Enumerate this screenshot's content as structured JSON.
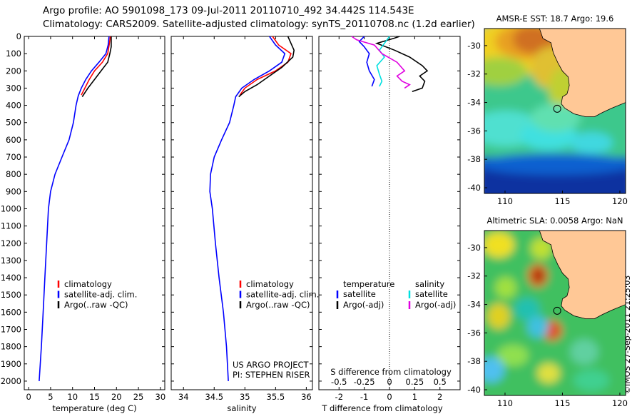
{
  "header": {
    "line1": "Argo profile: AO 5901098_173 09-Jul-2011 20110710_492 34.442S 114.543E",
    "line2": "Climatology: CARS2009. Satellite-adjusted climatology: synTS_20110708.nc (1.2d earlier)"
  },
  "colors": {
    "climatology": "#ff0000",
    "satellite": "#0000ff",
    "argo": "#000000",
    "satellite_salinity": "#00e0e0",
    "argo_salinity_adj": "#e000e0",
    "land": "#ffc896"
  },
  "chart_data": [
    {
      "id": "temperature",
      "type": "line",
      "xlabel": "temperature (deg C)",
      "ylabel": "",
      "xlim": [
        -1,
        31
      ],
      "ylim": [
        2050,
        0
      ],
      "y_reversed": true,
      "xticks": [
        0,
        5,
        10,
        15,
        20,
        25,
        30
      ],
      "yticks": [
        0,
        100,
        200,
        300,
        400,
        500,
        600,
        700,
        800,
        900,
        1000,
        1100,
        1200,
        1300,
        1400,
        1500,
        1600,
        1700,
        1800,
        1900,
        2000
      ],
      "series": [
        {
          "name": "climatology",
          "color": "#ff0000",
          "points": [
            [
              18.6,
              0
            ],
            [
              18.4,
              40
            ],
            [
              18.0,
              100
            ],
            [
              16.8,
              150
            ],
            [
              15.0,
              200
            ],
            [
              13.8,
              250
            ],
            [
              12.8,
              300
            ],
            [
              12.0,
              340
            ]
          ]
        },
        {
          "name": "satellite-adj. clim.",
          "color": "#0000ff",
          "points": [
            [
              18.3,
              0
            ],
            [
              18.1,
              50
            ],
            [
              17.6,
              100
            ],
            [
              16.0,
              150
            ],
            [
              14.3,
              200
            ],
            [
              13.0,
              250
            ],
            [
              12.0,
              300
            ],
            [
              11.3,
              345
            ],
            [
              10.8,
              400
            ],
            [
              10.2,
              500
            ],
            [
              9.2,
              600
            ],
            [
              7.6,
              700
            ],
            [
              6.0,
              800
            ],
            [
              5.0,
              900
            ],
            [
              4.5,
              1000
            ],
            [
              4.1,
              1200
            ],
            [
              3.7,
              1400
            ],
            [
              3.3,
              1600
            ],
            [
              2.9,
              1800
            ],
            [
              2.4,
              2000
            ]
          ]
        },
        {
          "name": "Argo(..raw -QC)",
          "color": "#000000",
          "points": [
            [
              18.8,
              0
            ],
            [
              18.8,
              60
            ],
            [
              18.5,
              100
            ],
            [
              18.0,
              150
            ],
            [
              16.5,
              200
            ],
            [
              15.0,
              250
            ],
            [
              13.5,
              300
            ],
            [
              12.2,
              350
            ]
          ]
        }
      ],
      "legend": {
        "position": "bottom-right",
        "entries": [
          "climatology",
          "satellite-adj. clim.",
          "Argo(..raw -QC)"
        ]
      }
    },
    {
      "id": "salinity",
      "type": "line",
      "xlabel": "salinity",
      "ylabel": "",
      "xlim": [
        33.8,
        36.1
      ],
      "ylim": [
        2050,
        0
      ],
      "y_reversed": true,
      "xticks": [
        34,
        34.5,
        35,
        35.5,
        36
      ],
      "series": [
        {
          "name": "climatology",
          "color": "#ff0000",
          "points": [
            [
              35.45,
              0
            ],
            [
              35.55,
              50
            ],
            [
              35.75,
              100
            ],
            [
              35.7,
              150
            ],
            [
              35.5,
              200
            ],
            [
              35.2,
              250
            ],
            [
              35.0,
              300
            ],
            [
              34.92,
              340
            ]
          ]
        },
        {
          "name": "satellite-adj. clim.",
          "color": "#0000ff",
          "points": [
            [
              35.4,
              0
            ],
            [
              35.5,
              50
            ],
            [
              35.65,
              100
            ],
            [
              35.6,
              150
            ],
            [
              35.4,
              200
            ],
            [
              35.15,
              250
            ],
            [
              34.95,
              300
            ],
            [
              34.85,
              350
            ],
            [
              34.82,
              400
            ],
            [
              34.75,
              500
            ],
            [
              34.62,
              600
            ],
            [
              34.5,
              700
            ],
            [
              34.44,
              800
            ],
            [
              34.43,
              900
            ],
            [
              34.47,
              1000
            ],
            [
              34.52,
              1200
            ],
            [
              34.58,
              1400
            ],
            [
              34.65,
              1600
            ],
            [
              34.7,
              1800
            ],
            [
              34.73,
              2000
            ]
          ]
        },
        {
          "name": "Argo(..raw -QC)",
          "color": "#000000",
          "points": [
            [
              35.7,
              0
            ],
            [
              35.75,
              40
            ],
            [
              35.8,
              80
            ],
            [
              35.78,
              120
            ],
            [
              35.6,
              180
            ],
            [
              35.4,
              230
            ],
            [
              35.2,
              280
            ],
            [
              35.0,
              320
            ],
            [
              34.9,
              350
            ]
          ]
        }
      ],
      "legend": {
        "position": "bottom-right",
        "entries": [
          "climatology",
          "satellite-adj. clim.",
          "Argo(..raw -QC)"
        ]
      },
      "annotations": [
        "US ARGO PROJECT",
        "PI: STEPHEN RISER"
      ]
    },
    {
      "id": "differences",
      "type": "line",
      "xlabel": "T difference from climatology",
      "x2label": "S difference from climatology",
      "xlim": [
        -2.8,
        2.8
      ],
      "ylim": [
        2050,
        0
      ],
      "y_reversed": true,
      "xticks": [
        -2,
        -1,
        0,
        1,
        2
      ],
      "x2ticks": [
        -0.5,
        -0.25,
        0,
        0.25,
        0.5
      ],
      "x2tick_labels": [
        "-0.5",
        "-0.25",
        "0",
        "0.25",
        "0.5"
      ],
      "series": [
        {
          "name": "temperature satellite",
          "color": "#0000ff",
          "points": [
            [
              -1.0,
              0
            ],
            [
              -1.2,
              30
            ],
            [
              -1.0,
              60
            ],
            [
              -0.8,
              100
            ],
            [
              -0.9,
              150
            ],
            [
              -0.8,
              200
            ],
            [
              -0.6,
              250
            ],
            [
              -0.7,
              290
            ]
          ]
        },
        {
          "name": "temperature Argo(-adj)",
          "color": "#000000",
          "points": [
            [
              0.4,
              0
            ],
            [
              0.2,
              10
            ],
            [
              -0.5,
              40
            ],
            [
              0.2,
              80
            ],
            [
              0.8,
              120
            ],
            [
              1.3,
              170
            ],
            [
              1.5,
              200
            ],
            [
              1.2,
              230
            ],
            [
              1.4,
              260
            ],
            [
              1.3,
              300
            ],
            [
              0.9,
              320
            ]
          ]
        },
        {
          "name": "salinity satellite",
          "color": "#00e0e0",
          "points": [
            [
              0.0,
              0
            ],
            [
              -0.2,
              40
            ],
            [
              -0.4,
              80
            ],
            [
              -0.2,
              120
            ],
            [
              -0.5,
              170
            ],
            [
              -0.4,
              220
            ],
            [
              -0.3,
              260
            ],
            [
              -0.4,
              290
            ]
          ]
        },
        {
          "name": "salinity Argo(-adj)",
          "color": "#e000e0",
          "points": [
            [
              -1.5,
              0
            ],
            [
              -1.3,
              20
            ],
            [
              -0.6,
              50
            ],
            [
              -0.3,
              100
            ],
            [
              0.3,
              150
            ],
            [
              0.6,
              200
            ],
            [
              0.3,
              230
            ],
            [
              0.5,
              260
            ],
            [
              0.8,
              280
            ],
            [
              0.6,
              300
            ]
          ]
        }
      ],
      "legend": {
        "temperature_title": "temperature",
        "salinity_title": "salinity",
        "entries": [
          [
            "satellite",
            "satellite"
          ],
          [
            "Argo(-adj)",
            "Argo(-adj)"
          ]
        ]
      }
    },
    {
      "id": "sst_map",
      "type": "heatmap",
      "title": "AMSR-E SST: 18.7 Argo: 19.6",
      "xlim": [
        108.2,
        120.5
      ],
      "ylim": [
        -40.4,
        -28.8
      ],
      "xticks": [
        110,
        115,
        120
      ],
      "yticks": [
        -30,
        -32,
        -34,
        -36,
        -38,
        -40
      ],
      "xtick_labels": [
        "110",
        "115",
        "120"
      ],
      "ytick_labels": [
        "-30",
        "-32",
        "-34",
        "-36",
        "-38",
        "-40"
      ],
      "marker": {
        "lon": 114.543,
        "lat": -34.442
      }
    },
    {
      "id": "sla_map",
      "type": "heatmap",
      "title": "Altimetric SLA: 0.0058 Argo: NaN",
      "xlim": [
        108.2,
        120.5
      ],
      "ylim": [
        -40.4,
        -28.8
      ],
      "xticks": [
        110,
        115,
        120
      ],
      "yticks": [
        -30,
        -32,
        -34,
        -36,
        -38,
        -40
      ],
      "xtick_labels": [
        "110",
        "115",
        "120"
      ],
      "ytick_labels": [
        "-30",
        "-32",
        "-34",
        "-36",
        "-38",
        "-40"
      ],
      "marker": {
        "lon": 114.543,
        "lat": -34.442
      }
    }
  ],
  "stamp": "©IMOS 27-Sep-2011 21:25:03"
}
